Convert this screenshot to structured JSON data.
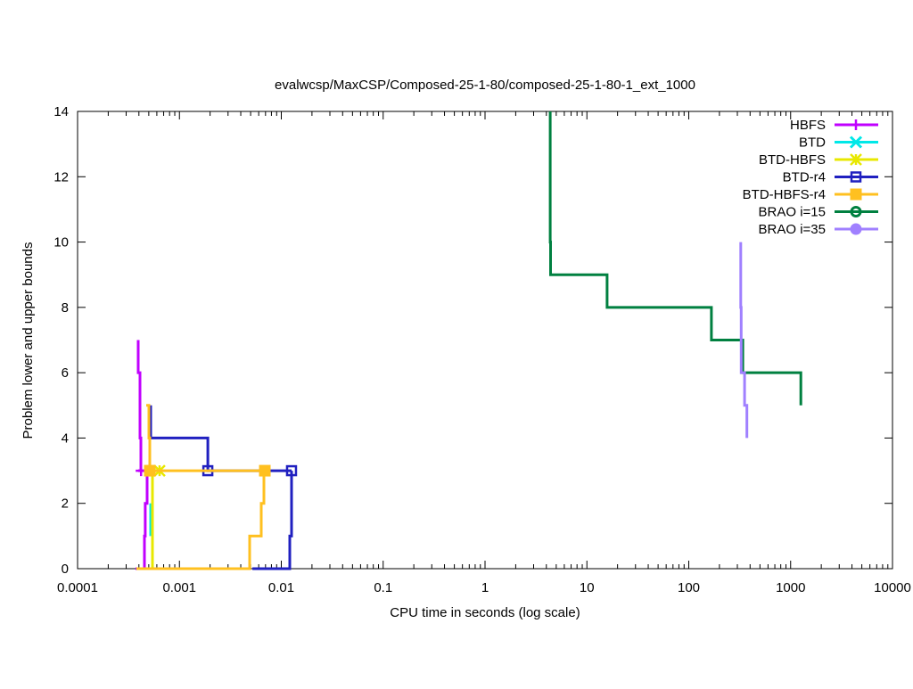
{
  "chart_data": {
    "type": "line",
    "title": "evalwcsp/MaxCSP/Composed-25-1-80/composed-25-1-80-1_ext_1000",
    "xlabel": "CPU time in seconds (log scale)",
    "ylabel": "Problem lower and upper bounds",
    "xscale": "log",
    "xlim": [
      0.0001,
      10000
    ],
    "ylim": [
      0,
      14
    ],
    "x_ticks": [
      0.0001,
      0.001,
      0.01,
      0.1,
      1,
      10,
      100,
      1000,
      10000
    ],
    "x_tick_labels": [
      "0.0001",
      "0.001",
      "0.01",
      "0.1",
      "1",
      "10",
      "100",
      "1000",
      "10000"
    ],
    "y_ticks": [
      0,
      2,
      4,
      6,
      8,
      10,
      12,
      14
    ],
    "y_tick_labels": [
      "0",
      "2",
      "4",
      "6",
      "8",
      "10",
      "12",
      "14"
    ],
    "grid": false,
    "legend_position": "top-right",
    "series": [
      {
        "name": "HBFS",
        "color": "#c000ff",
        "marker": "plus",
        "paths": [
          [
            [
              0.000394,
              7
            ],
            [
              0.000394,
              6
            ],
            [
              0.00041,
              6
            ],
            [
              0.00041,
              4
            ],
            [
              0.000418,
              4
            ],
            [
              0.000418,
              3
            ]
          ],
          [
            [
              0.000371,
              0
            ],
            [
              0.000453,
              0
            ],
            [
              0.000453,
              1
            ],
            [
              0.000462,
              1
            ],
            [
              0.000462,
              2
            ],
            [
              0.000482,
              2
            ],
            [
              0.000482,
              3
            ]
          ],
          [
            [
              0.000394,
              3
            ],
            [
              0.000482,
              3
            ]
          ]
        ],
        "markers": [
          [
            0.00042,
            3
          ]
        ]
      },
      {
        "name": "BTD",
        "color": "#00e8e8",
        "marker": "cross",
        "paths": [
          [
            [
              0.000522,
              1
            ],
            [
              0.000522,
              2
            ]
          ]
        ],
        "markers": []
      },
      {
        "name": "BTD-HBFS",
        "color": "#e8e800",
        "marker": "star",
        "paths": [
          [
            [
              0.000543,
              0
            ],
            [
              0.000543,
              3
            ],
            [
              0.000638,
              3
            ]
          ]
        ],
        "markers": [
          [
            0.000638,
            3
          ]
        ]
      },
      {
        "name": "BTD-r4",
        "color": "#2020c0",
        "marker": "open-square",
        "paths": [
          [
            [
              0.000522,
              5
            ],
            [
              0.000522,
              4
            ],
            [
              0.0019,
              4
            ],
            [
              0.0019,
              3
            ],
            [
              0.0126,
              3
            ]
          ],
          [
            [
              0.0052,
              0
            ],
            [
              0.0121,
              0
            ],
            [
              0.0121,
              1
            ],
            [
              0.0126,
              1
            ],
            [
              0.0126,
              3
            ]
          ]
        ],
        "markers": [
          [
            0.0019,
            3
          ],
          [
            0.0126,
            3
          ]
        ]
      },
      {
        "name": "BTD-HBFS-r4",
        "color": "#ffc020",
        "marker": "filled-square",
        "paths": [
          [
            [
              0.000472,
              5
            ],
            [
              0.000501,
              5
            ],
            [
              0.000501,
              4
            ],
            [
              0.000512,
              4
            ],
            [
              0.000512,
              3
            ],
            [
              0.00689,
              3
            ]
          ],
          [
            [
              0.000378,
              0
            ],
            [
              0.00489,
              0
            ],
            [
              0.00489,
              1
            ],
            [
              0.00636,
              1
            ],
            [
              0.00636,
              2
            ],
            [
              0.00675,
              2
            ],
            [
              0.00675,
              3
            ]
          ]
        ],
        "markers": [
          [
            0.000512,
            3
          ],
          [
            0.00689,
            3
          ]
        ]
      },
      {
        "name": "BRAO i=15",
        "color": "#008040",
        "marker": "open-circle",
        "paths": [
          [
            [
              4.36,
              14
            ],
            [
              4.36,
              10
            ],
            [
              4.4,
              10
            ],
            [
              4.4,
              9
            ],
            [
              15.8,
              9
            ],
            [
              15.8,
              8
            ],
            [
              167,
              8
            ],
            [
              167,
              7
            ],
            [
              339,
              7
            ],
            [
              339,
              6
            ],
            [
              1260,
              6
            ],
            [
              1260,
              5
            ]
          ]
        ],
        "markers": []
      },
      {
        "name": "BRAO i=35",
        "color": "#a080ff",
        "marker": "filled-circle",
        "paths": [
          [
            [
              324,
              10
            ],
            [
              324,
              8
            ],
            [
              327,
              8
            ],
            [
              327,
              6
            ],
            [
              353,
              6
            ],
            [
              353,
              5
            ],
            [
              372,
              5
            ],
            [
              372,
              4
            ]
          ]
        ],
        "markers": []
      }
    ]
  }
}
